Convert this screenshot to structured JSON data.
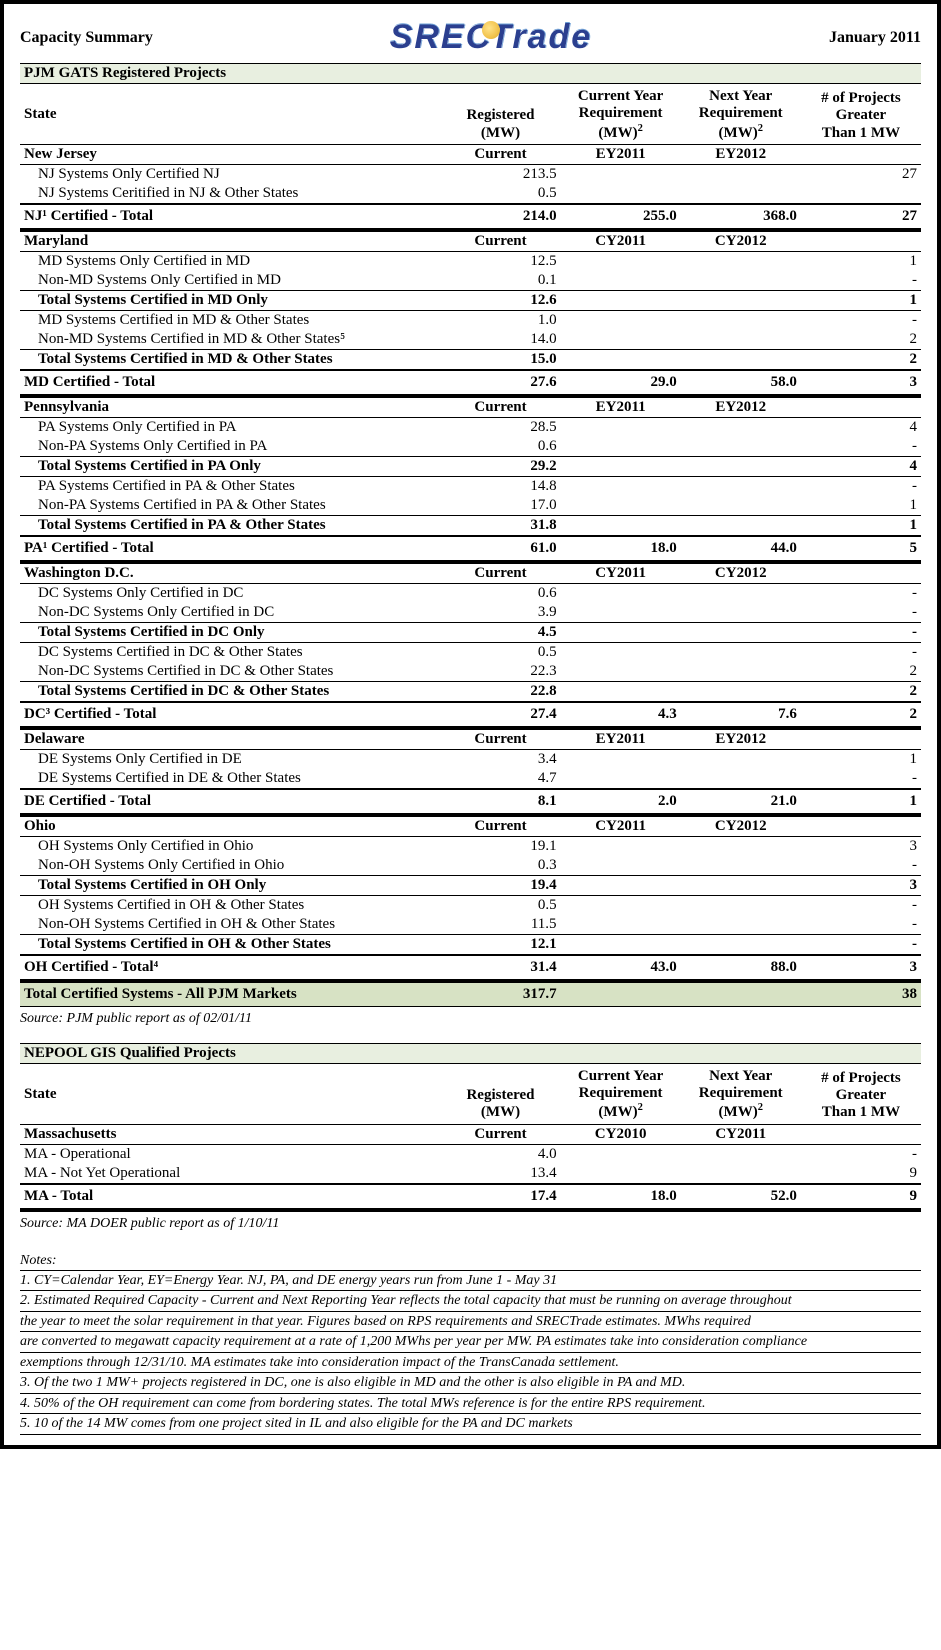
{
  "header": {
    "title": "Capacity Summary",
    "date": "January 2011",
    "logo_text_a": "SREC",
    "logo_text_b": "Trade"
  },
  "columns": {
    "state": "State",
    "registered_l1": "Registered",
    "registered_l2": "(MW)",
    "current_l1": "Current Year",
    "current_l2": "Requirement",
    "current_l3": "(MW)",
    "next_l1": "Next Year",
    "next_l2": "Requirement",
    "next_l3": "(MW)",
    "proj_l1": "# of Projects",
    "proj_l2": "Greater",
    "proj_l3": "Than 1 MW",
    "sup2": "2"
  },
  "pjm": {
    "section_title": "PJM GATS Registered Projects",
    "source": "Source: PJM public report as of 02/01/11",
    "grand_total_label": "Total Certified Systems - All PJM Markets",
    "grand_total_reg": "317.7",
    "grand_total_proj": "38",
    "states": [
      {
        "name": "New Jersey",
        "year_cur": "EY2011",
        "year_next": "EY2012",
        "col2_label": "Current",
        "rows": [
          {
            "label": "NJ Systems Only Certified NJ",
            "reg": "213.5",
            "proj": "27"
          },
          {
            "label": "NJ Systems Ceritified in NJ & Other States",
            "reg": "0.5",
            "proj": ""
          }
        ],
        "total_label": "NJ¹ Certified - Total",
        "total_reg": "214.0",
        "total_cur": "255.0",
        "total_next": "368.0",
        "total_proj": "27"
      },
      {
        "name": "Maryland",
        "year_cur": "CY2011",
        "year_next": "CY2012",
        "col2_label": "Current",
        "rows": [
          {
            "label": "MD Systems Only Certified in MD",
            "reg": "12.5",
            "proj": "1"
          },
          {
            "label": "Non-MD Systems Only Certified in MD",
            "reg": "0.1",
            "proj": "-"
          },
          {
            "subtotal": true,
            "label": "Total Systems Certified in MD Only",
            "reg": "12.6",
            "proj": "1"
          },
          {
            "label": "MD Systems Certified in MD & Other States",
            "reg": "1.0",
            "proj": "-"
          },
          {
            "label": "Non-MD Systems Certified in MD & Other States⁵",
            "reg": "14.0",
            "proj": "2"
          },
          {
            "subtotal": true,
            "label": "Total Systems Certified in MD & Other States",
            "reg": "15.0",
            "proj": "2"
          }
        ],
        "total_label": "MD Certified - Total",
        "total_reg": "27.6",
        "total_cur": "29.0",
        "total_next": "58.0",
        "total_proj": "3"
      },
      {
        "name": "Pennsylvania",
        "year_cur": "EY2011",
        "year_next": "EY2012",
        "col2_label": "Current",
        "rows": [
          {
            "label": "PA Systems Only Certified in PA",
            "reg": "28.5",
            "proj": "4"
          },
          {
            "label": "Non-PA Systems Only Certified in PA",
            "reg": "0.6",
            "proj": "-"
          },
          {
            "subtotal": true,
            "label": "Total Systems Certified in PA Only",
            "reg": "29.2",
            "proj": "4"
          },
          {
            "label": "PA Systems Certified in PA & Other States",
            "reg": "14.8",
            "proj": "-"
          },
          {
            "label": "Non-PA Systems Certified in PA & Other States",
            "reg": "17.0",
            "proj": "1"
          },
          {
            "subtotal": true,
            "label": "Total Systems Certified in PA & Other States",
            "reg": "31.8",
            "proj": "1"
          }
        ],
        "total_label": "PA¹ Certified - Total",
        "total_reg": "61.0",
        "total_cur": "18.0",
        "total_next": "44.0",
        "total_proj": "5"
      },
      {
        "name": "Washington D.C.",
        "year_cur": "CY2011",
        "year_next": "CY2012",
        "col2_label": "Current",
        "rows": [
          {
            "label": "DC Systems Only Certified in DC",
            "reg": "0.6",
            "proj": "-"
          },
          {
            "label": "Non-DC Systems Only Certified in DC",
            "reg": "3.9",
            "proj": "-"
          },
          {
            "subtotal": true,
            "label": "Total Systems Certified in DC Only",
            "reg": "4.5",
            "proj": "-"
          },
          {
            "label": "DC Systems Certified in DC & Other States",
            "reg": "0.5",
            "proj": "-"
          },
          {
            "label": "Non-DC Systems Certified in DC & Other States",
            "reg": "22.3",
            "proj": "2"
          },
          {
            "subtotal": true,
            "label": "Total Systems Certified in DC & Other States",
            "reg": "22.8",
            "proj": "2"
          }
        ],
        "total_label": "DC³ Certified - Total",
        "total_reg": "27.4",
        "total_cur": "4.3",
        "total_next": "7.6",
        "total_proj": "2"
      },
      {
        "name": "Delaware",
        "year_cur": "EY2011",
        "year_next": "EY2012",
        "col2_label": "Current",
        "rows": [
          {
            "label": "DE Systems Only Certified in DE",
            "reg": "3.4",
            "proj": "1"
          },
          {
            "label": "DE Systems Certified in DE & Other States",
            "reg": "4.7",
            "proj": "-"
          }
        ],
        "total_label": "DE Certified - Total",
        "total_reg": "8.1",
        "total_cur": "2.0",
        "total_next": "21.0",
        "total_proj": "1"
      },
      {
        "name": "Ohio",
        "year_cur": "CY2011",
        "year_next": "CY2012",
        "col2_label": "Current",
        "rows": [
          {
            "label": "OH Systems Only Certified in Ohio",
            "reg": "19.1",
            "proj": "3"
          },
          {
            "label": "Non-OH Systems Only Certified in Ohio",
            "reg": "0.3",
            "proj": "-"
          },
          {
            "subtotal": true,
            "label": "Total Systems Certified in OH Only",
            "reg": "19.4",
            "proj": "3"
          },
          {
            "label": "OH Systems Certified in OH & Other States",
            "reg": "0.5",
            "proj": "-"
          },
          {
            "label": "Non-OH Systems Certified in OH & Other States",
            "reg": "11.5",
            "proj": "-"
          },
          {
            "subtotal": true,
            "label": "Total Systems Certified in OH & Other States",
            "reg": "12.1",
            "proj": "-"
          }
        ],
        "total_label": "OH Certified - Total⁴",
        "total_reg": "31.4",
        "total_cur": "43.0",
        "total_next": "88.0",
        "total_proj": "3"
      }
    ]
  },
  "nepool": {
    "section_title": "NEPOOL GIS Qualified Projects",
    "source": "Source: MA DOER public report as of 1/10/11",
    "group": {
      "name": "Massachusetts",
      "col2_label": "Current",
      "year_cur": "CY2010",
      "year_next": "CY2011"
    },
    "rows": [
      {
        "label": "MA - Operational",
        "reg": "4.0",
        "proj": "-"
      },
      {
        "label": "MA - Not Yet Operational",
        "reg": "13.4",
        "proj": "9"
      }
    ],
    "total_label": "MA - Total",
    "total_reg": "17.4",
    "total_cur": "18.0",
    "total_next": "52.0",
    "total_proj": "9"
  },
  "notes": {
    "title": "Notes:",
    "lines": [
      "1. CY=Calendar Year, EY=Energy Year. NJ, PA, and DE energy years run from June 1 - May 31",
      "2. Estimated Required Capacity - Current and Next Reporting Year reflects the total capacity that must be running on average throughout",
      "the year to meet the solar requirement in that year. Figures based on RPS requirements and SRECTrade estimates. MWhs required",
      "are converted to megawatt capacity requirement at a rate of 1,200 MWhs per year per MW. PA estimates take into consideration compliance",
      "exemptions through 12/31/10. MA estimates take into consideration impact of the TransCanada settlement.",
      "3. Of the two 1 MW+ projects registered in DC, one is also eligible in MD and the other is also eligible in PA and MD.",
      "4. 50% of the OH requirement can come from bordering states. The total MWs reference is for the entire RPS requirement.",
      "5. 10 of the 14 MW comes from one project sited in IL and also eligible for the PA and DC markets"
    ]
  }
}
